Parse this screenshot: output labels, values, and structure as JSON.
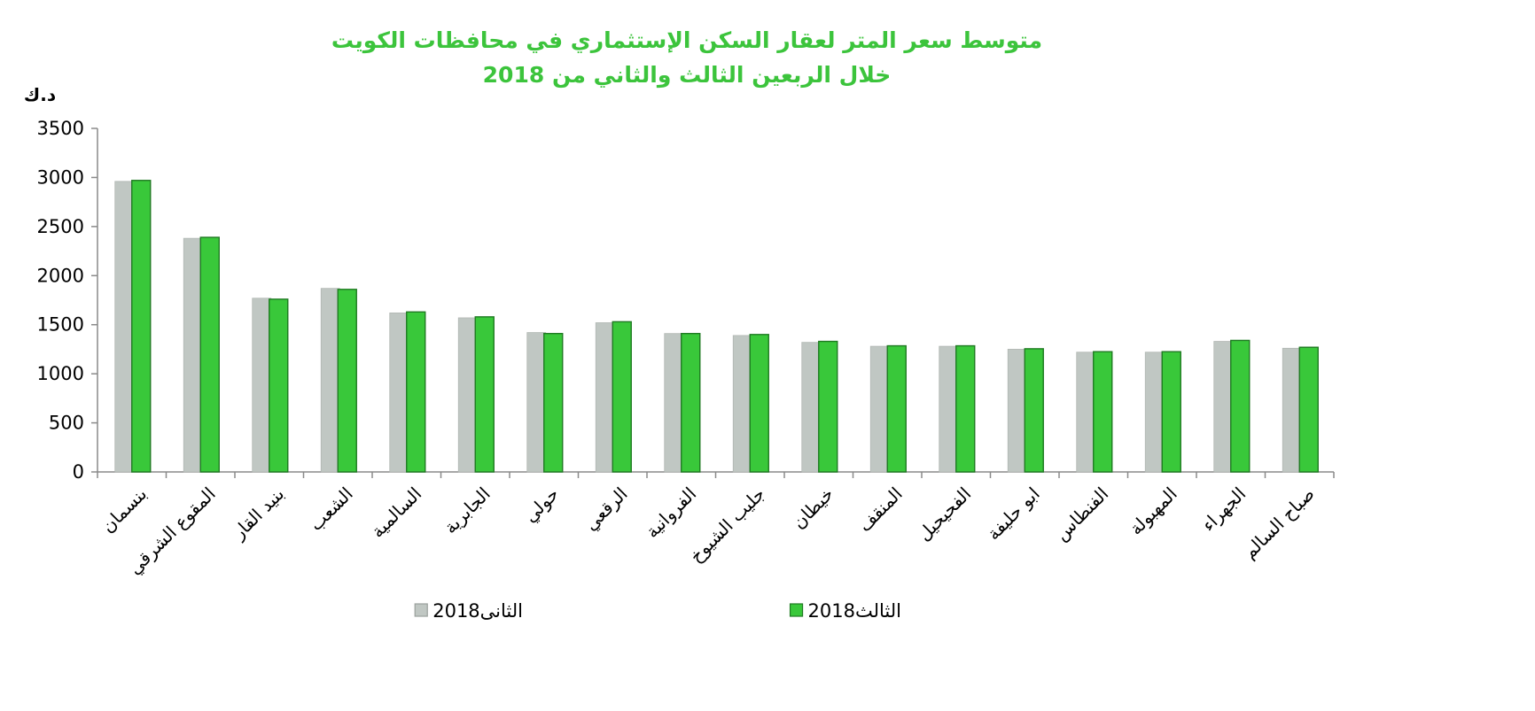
{
  "chart_data": {
    "type": "bar",
    "title_line1": "متوسط سعر المتر لعقار السكن الإستثماري في محافظات الكويت",
    "title_line2": "خلال الربعين الثالث والثاني من 2018",
    "unit_label": "د.ك",
    "ylim": [
      0,
      3500
    ],
    "yticks": [
      0,
      500,
      1000,
      1500,
      2000,
      2500,
      3000,
      3500
    ],
    "categories": [
      "بنسمان",
      "المقوع الشرقي",
      "بنيد القار",
      "الشعب",
      "السالمية",
      "الجابرية",
      "حولي",
      "الرقعي",
      "الفروانية",
      "جليب الشيوخ",
      "خيطان",
      "المنقف",
      "الفحيحيل",
      "ابو حليفة",
      "الفنطاس",
      "المهبولة",
      "الجهراء",
      "صباح السالم"
    ],
    "series": [
      {
        "name": "الثاني 2018",
        "legend_word": "الثانى",
        "legend_year": "2018",
        "color": "#c0c7c3",
        "values": [
          2960,
          2380,
          1770,
          1870,
          1620,
          1570,
          1420,
          1520,
          1410,
          1390,
          1320,
          1280,
          1280,
          1250,
          1220,
          1220,
          1330,
          1260
        ]
      },
      {
        "name": "الثالث 2018",
        "legend_word": "الثالث",
        "legend_year": "2018",
        "color": "#39c83a",
        "values": [
          2970,
          2390,
          1760,
          1860,
          1630,
          1580,
          1410,
          1530,
          1410,
          1400,
          1330,
          1285,
          1285,
          1255,
          1225,
          1225,
          1340,
          1270
        ]
      }
    ],
    "title_color": "#3cc43c",
    "grid": false,
    "legend_position": "bottom"
  }
}
